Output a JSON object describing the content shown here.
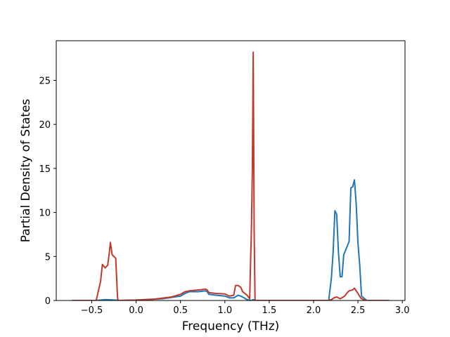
{
  "chart_data": {
    "type": "line",
    "title": "",
    "xlabel": "Frequency (THz)",
    "ylabel": "Partial Density of States",
    "xlim": [
      -0.9,
      3.03
    ],
    "ylim": [
      0,
      29.5
    ],
    "xticks": [
      -0.5,
      0.0,
      0.5,
      1.0,
      1.5,
      2.0,
      2.5,
      3.0
    ],
    "xtick_labels": [
      "−0.5",
      "0.0",
      "0.5",
      "1.0",
      "1.5",
      "2.0",
      "2.5",
      "3.0"
    ],
    "yticks": [
      0,
      5,
      10,
      15,
      20,
      25
    ],
    "ytick_labels": [
      "0",
      "5",
      "10",
      "15",
      "20",
      "25"
    ],
    "grid": false,
    "series": [
      {
        "color": "#1f77b4",
        "x": [
          -0.72,
          -0.45,
          -0.4,
          -0.35,
          -0.3,
          -0.25,
          -0.2,
          -0.195,
          0.0,
          0.3,
          0.5,
          0.55,
          0.6,
          0.7,
          0.78,
          0.8,
          0.82,
          0.9,
          1.0,
          1.05,
          1.1,
          1.15,
          1.2,
          1.25,
          1.3,
          1.32,
          1.34,
          1.36,
          1.4,
          2.0,
          2.17,
          2.2,
          2.22,
          2.24,
          2.26,
          2.28,
          2.3,
          2.32,
          2.34,
          2.38,
          2.4,
          2.42,
          2.44,
          2.46,
          2.48,
          2.5,
          2.52,
          2.54,
          2.6,
          2.85
        ],
        "y": [
          0,
          0,
          0.05,
          0.1,
          0.08,
          0.05,
          0.03,
          0,
          0.05,
          0.2,
          0.5,
          0.8,
          1.0,
          1.0,
          1.1,
          1.0,
          0.7,
          0.6,
          0.5,
          0.3,
          0.3,
          0.6,
          0.4,
          0.1,
          0,
          0.1,
          0,
          0,
          0,
          0,
          0,
          2.5,
          5.5,
          10.2,
          9.8,
          5.5,
          2.7,
          2.7,
          5.2,
          6.2,
          6.7,
          12.8,
          12.9,
          13.7,
          11.0,
          6.5,
          4.0,
          0.5,
          0,
          0
        ]
      },
      {
        "color": "#c1392b",
        "x": [
          -0.72,
          -0.45,
          -0.4,
          -0.38,
          -0.35,
          -0.32,
          -0.3,
          -0.29,
          -0.27,
          -0.25,
          -0.24,
          -0.23,
          -0.21,
          -0.205,
          0.0,
          0.2,
          0.4,
          0.5,
          0.55,
          0.6,
          0.7,
          0.75,
          0.78,
          0.8,
          0.82,
          0.9,
          1.0,
          1.05,
          1.1,
          1.12,
          1.15,
          1.18,
          1.2,
          1.25,
          1.28,
          1.3,
          1.31,
          1.32,
          1.33,
          1.34,
          1.36,
          1.4,
          2.0,
          2.17,
          2.2,
          2.23,
          2.26,
          2.3,
          2.35,
          2.38,
          2.4,
          2.44,
          2.46,
          2.5,
          2.53,
          2.56,
          2.6,
          2.85
        ],
        "y": [
          0,
          0,
          2.2,
          4.1,
          3.7,
          4.0,
          5.6,
          6.6,
          5.2,
          5.0,
          4.9,
          4.8,
          0.5,
          0,
          0.05,
          0.15,
          0.4,
          0.7,
          1.0,
          1.1,
          1.2,
          1.25,
          1.3,
          1.2,
          0.9,
          0.8,
          0.75,
          0.5,
          0.6,
          1.7,
          1.7,
          1.5,
          1.0,
          0.6,
          0.2,
          8.5,
          15.0,
          28.2,
          8.0,
          0,
          0,
          0,
          0,
          0,
          0.1,
          0.3,
          0.4,
          0.2,
          0.5,
          0.9,
          1.1,
          1.2,
          1.4,
          0.8,
          0.3,
          0.1,
          0,
          0
        ]
      }
    ]
  }
}
